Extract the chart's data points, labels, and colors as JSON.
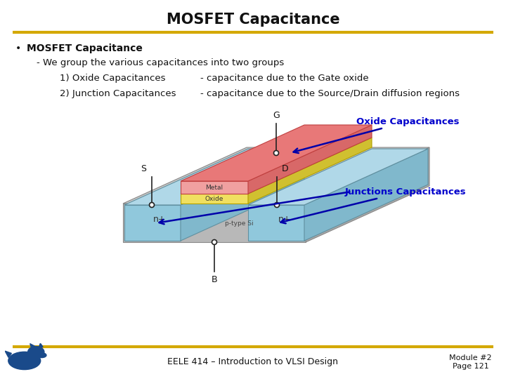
{
  "title": "MOSFET Capacitance",
  "title_fontsize": 15,
  "title_fontweight": "bold",
  "bg_color": "#ffffff",
  "header_line_color": "#d4a800",
  "footer_line_color": "#d4a800",
  "bullet_text": "MOSFET Capacitance",
  "sub_text": "- We group the various capacitances into two groups",
  "item1_left": "1) Oxide Capacitances",
  "item1_right": "- capacitance due to the Gate oxide",
  "item2_left": "2) Junction Capacitances",
  "item2_right": "- capacitance due to the Source/Drain diffusion regions",
  "label_oxide": "Oxide Capacitances",
  "label_junction": "Junctions Capacitances",
  "footer_text": "EELE 414 – Introduction to VLSI Design",
  "module_text": "Module #2\nPage 121",
  "color_metal": "#e87878",
  "color_metal_front": "#f0a0a0",
  "color_metal_side": "#d86868",
  "color_oxide": "#e8d840",
  "color_oxide_front": "#f0e060",
  "color_oxide_side": "#d0c030",
  "color_substrate_top": "#c8c8c8",
  "color_substrate_front": "#b8b8b8",
  "color_substrate_side": "#a8a8a8",
  "color_nplus_top": "#b0d8e8",
  "color_nplus_front": "#90c8dc",
  "color_nplus_side": "#80b8cc",
  "color_body_top": "#c0dce0",
  "color_label_blue": "#0000cc",
  "color_arrow": "#0000aa",
  "color_pin": "#222222",
  "text_color": "#111111"
}
